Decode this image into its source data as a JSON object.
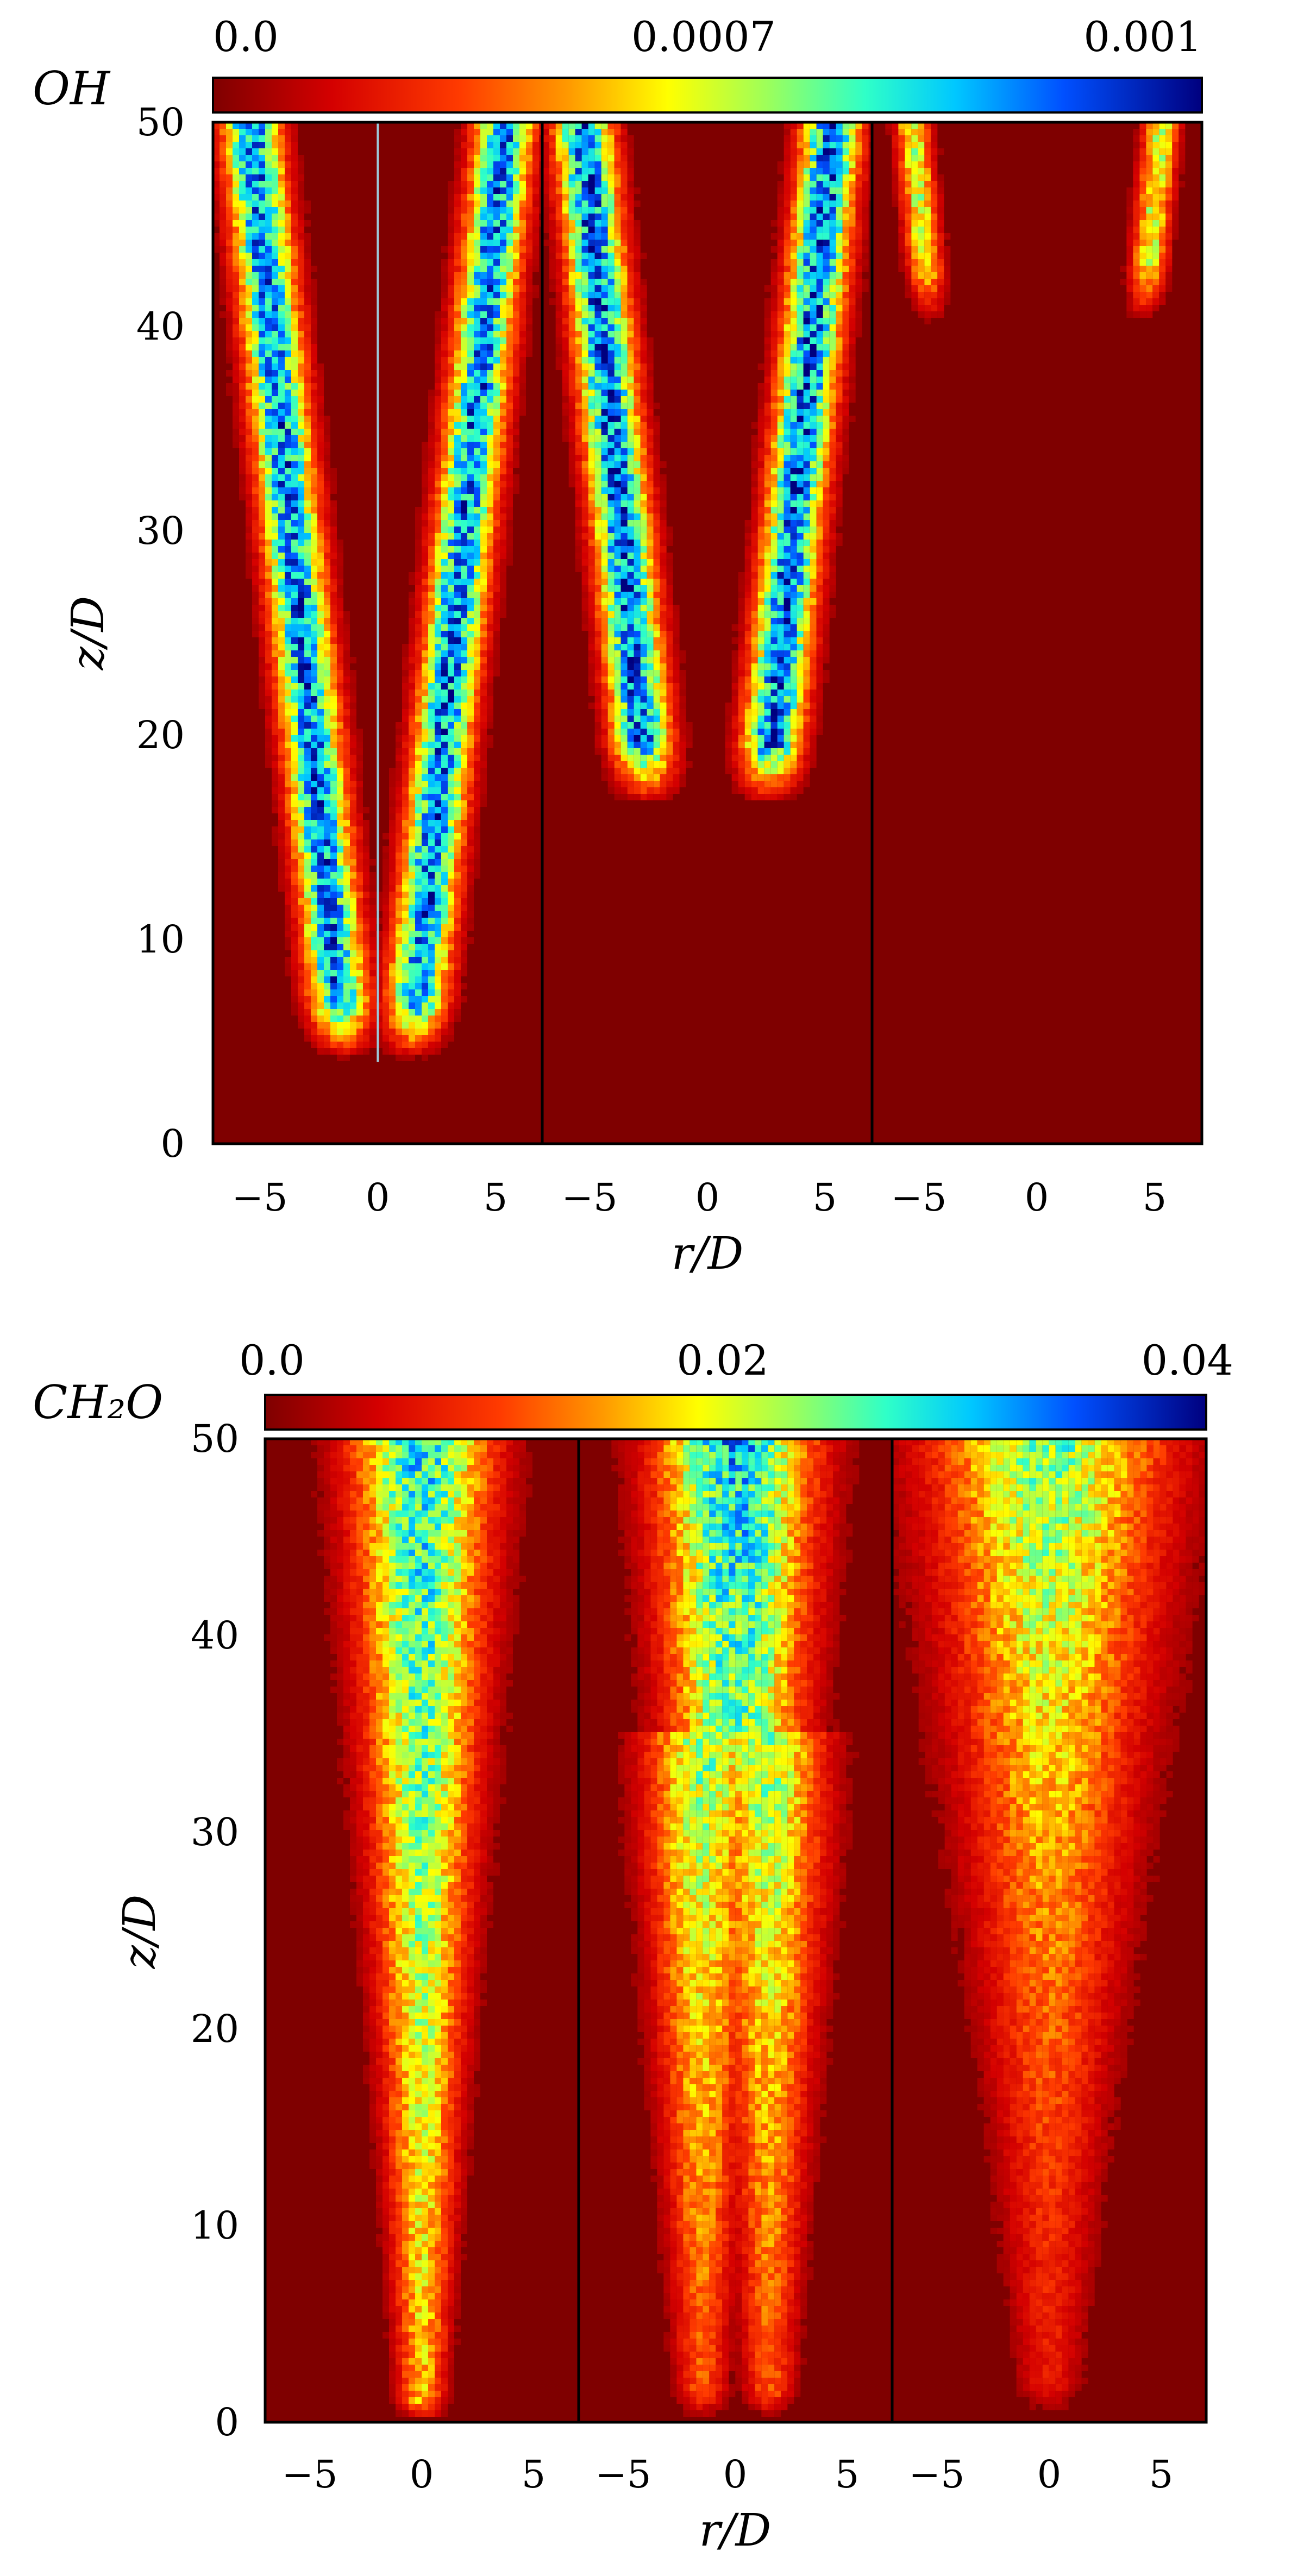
{
  "chart_data": [
    {
      "type": "heatmap",
      "species_label": "OH",
      "colorbar": {
        "tick_labels": [
          "0.0",
          "0.0007",
          "0.001"
        ],
        "min": 0.0,
        "max": 0.001,
        "colormap": "jet-reversed"
      },
      "xlabel": "r/D",
      "ylabel": "z/D",
      "xlim": [
        -7,
        7
      ],
      "ylim": [
        0,
        50
      ],
      "x_ticks": [
        "−5",
        "0",
        "5"
      ],
      "y_ticks": [
        "0",
        "10",
        "20",
        "30",
        "40",
        "50"
      ],
      "panels": [
        {
          "pattern": "edge-flame",
          "onset_z": 4,
          "r_base": 1.4,
          "r_top": 5.4,
          "peak": 0.00082,
          "width": 1.2,
          "centerline_line": true
        },
        {
          "pattern": "edge-flame",
          "onset_z": 16.5,
          "r_base": 2.5,
          "r_top": 5.3,
          "peak": 0.00085,
          "width": 1.2,
          "centerline_line": false
        },
        {
          "pattern": "edge-flame",
          "onset_z": 40,
          "r_base": 4.5,
          "r_top": 5.3,
          "peak": 0.0005,
          "width": 0.7,
          "centerline_line": false
        }
      ]
    },
    {
      "type": "heatmap",
      "species_label": "CH₂O",
      "colorbar": {
        "tick_labels": [
          "0.0",
          "0.02",
          "0.04"
        ],
        "min": 0.0,
        "max": 0.04,
        "colormap": "jet-reversed"
      },
      "xlabel": "r/D",
      "ylabel": "z/D",
      "xlim": [
        -7,
        7
      ],
      "ylim": [
        0,
        50
      ],
      "x_ticks": [
        "−5",
        "0",
        "5"
      ],
      "y_ticks": [
        "0",
        "10",
        "20",
        "30",
        "40",
        "50"
      ],
      "panels": [
        {
          "pattern": "centered-jet",
          "r_base": 0.9,
          "r_top": 3.0,
          "peak": 0.028
        },
        {
          "pattern": "split-jet",
          "r_base": 1.0,
          "r_top": 3.2,
          "peak": 0.03
        },
        {
          "pattern": "broad-jet",
          "r_base": 1.2,
          "r_top": 5.0,
          "peak": 0.024
        }
      ]
    }
  ],
  "colors": {
    "background": "#7f0000",
    "frame": "#000000"
  }
}
